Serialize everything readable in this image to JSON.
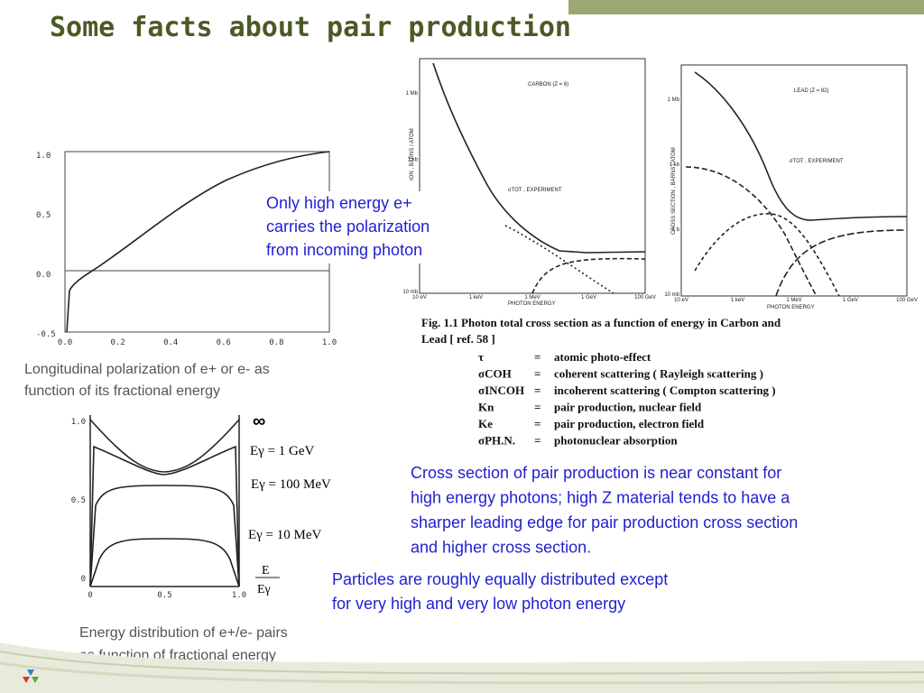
{
  "header": {
    "title": "Some facts about pair production"
  },
  "polarization_plot": {
    "yticks": [
      "1.0",
      "0.5",
      "0.0",
      "-0.5"
    ],
    "xticks": [
      "0.0",
      "0.2",
      "0.4",
      "0.6",
      "0.8",
      "1.0"
    ],
    "caption": [
      "Longitudinal polarization of e+ or e- as",
      "function of its fractional energy"
    ]
  },
  "callout_polarization": [
    "Only high energy e+",
    "carries the polarization",
    "from incoming photon"
  ],
  "carbon_plot": {
    "label": "CARBON (Z = 6)",
    "xlabel": "PHOTON ENERGY",
    "ylabel": "ION , BARNS / ATOM",
    "curve_label": "σTOT , EXPERIMENT",
    "xticks": [
      "10 eV",
      "1 keV",
      "1 MeV",
      "1 GeV",
      "100 GeV"
    ],
    "yticks": [
      "1 Mb",
      "1 kb",
      "1 b",
      "10 mb"
    ]
  },
  "lead_plot": {
    "label": "LEAD (Z = 82)",
    "xlabel": "PHOTON ENERGY",
    "ylabel": "CROSS SECTION , BARNS / ATOM",
    "curve_label": "σTOT , EXPERIMENT",
    "xticks": [
      "10 eV",
      "1 keV",
      "1 MeV",
      "1 GeV",
      "100 GeV"
    ],
    "yticks": [
      "1 Mb",
      "1 kb",
      "1 b",
      "10 mb"
    ]
  },
  "figure_caption": [
    "Fig. 1.1  Photon  total  cross  section  as  a  function  of  energy  in  Carbon  and",
    "Lead [  ref.  58 ]"
  ],
  "legend": [
    {
      "symbol": "τ",
      "eq": "=",
      "text": "atomic photo-effect"
    },
    {
      "symbol": "σCOH",
      "eq": "=",
      "text": "coherent scattering ( Rayleigh scattering )"
    },
    {
      "symbol": "σINCOH",
      "eq": "=",
      "text": "incoherent scattering ( Compton scattering )"
    },
    {
      "symbol": "Kn",
      "eq": "=",
      "text": "pair production, nuclear field"
    },
    {
      "symbol": "Ke",
      "eq": "=",
      "text": "pair production, electron field"
    },
    {
      "symbol": "σPH.N.",
      "eq": "=",
      "text": "photonuclear absorption"
    }
  ],
  "callout_cross_section": [
    "Cross section of pair production is near constant for",
    "high energy photons; high Z material tends to have a",
    "sharper leading edge for pair production cross section",
    "and higher cross section."
  ],
  "energy_plot": {
    "yticks": [
      "1.0",
      "0.5",
      "0"
    ],
    "xticks": [
      "0",
      "0.5",
      "1.0"
    ],
    "curve_labels": [
      "∞",
      "Eγ = 1  GeV",
      "Eγ = 100  MeV",
      "Eγ = 10  MeV"
    ],
    "xlabel_num": "E",
    "xlabel_den": "Eγ",
    "caption": [
      "Energy distribution of e+/e- pairs",
      "as function of fractional energy"
    ]
  },
  "callout_distribution": [
    "Particles are roughly equally distributed except",
    "for very high and very low photon energy"
  ]
}
